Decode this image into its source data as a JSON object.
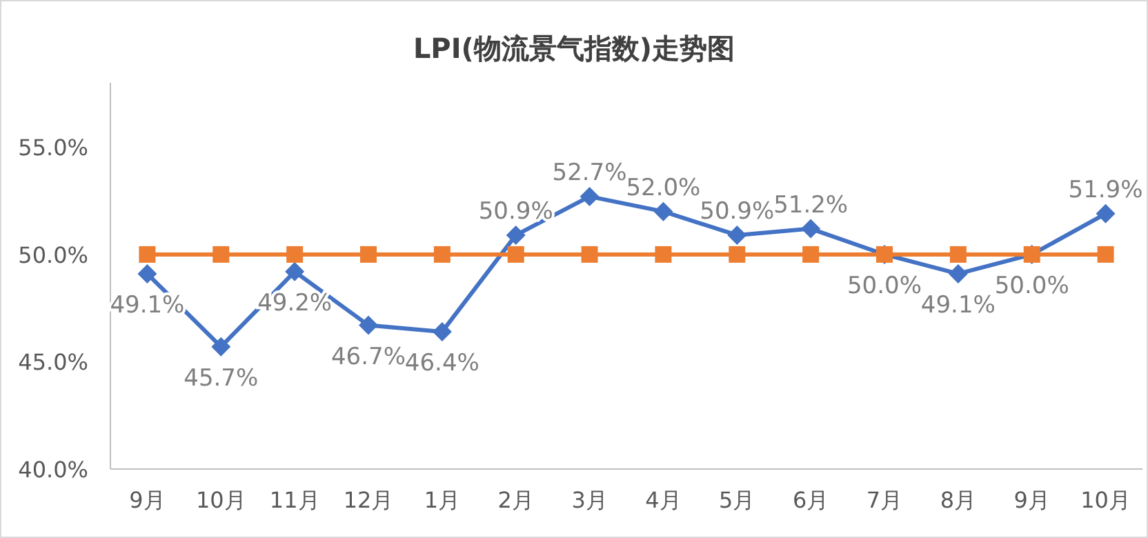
{
  "chart_data": {
    "type": "line",
    "title": "LPI(物流景气指数)走势图",
    "categories": [
      "9月",
      "10月",
      "11月",
      "12月",
      "1月",
      "2月",
      "3月",
      "4月",
      "5月",
      "6月",
      "7月",
      "8月",
      "9月",
      "10月"
    ],
    "series": [
      {
        "color": "#4472c4",
        "marker": "diamond",
        "values": [
          49.1,
          45.7,
          49.2,
          46.7,
          46.4,
          50.9,
          52.7,
          52.0,
          50.9,
          51.2,
          50.0,
          49.1,
          50.0,
          51.9
        ],
        "value_labels": [
          "49.1%",
          "45.7%",
          "49.2%",
          "46.7%",
          "46.4%",
          "50.9%",
          "52.7%",
          "52.0%",
          "50.9%",
          "51.2%",
          "50.0%",
          "49.1%",
          "50.0%",
          "51.9%"
        ]
      },
      {
        "color": "#ed7d31",
        "marker": "square",
        "values": [
          50,
          50,
          50,
          50,
          50,
          50,
          50,
          50,
          50,
          50,
          50,
          50,
          50,
          50
        ]
      }
    ],
    "ylim": [
      40,
      58
    ],
    "yticks": [
      {
        "value": 40,
        "label": "40.0%"
      },
      {
        "value": 45,
        "label": "45.0%"
      },
      {
        "value": 50,
        "label": "50.0%"
      },
      {
        "value": 55,
        "label": "55.0%"
      }
    ],
    "grid": false
  }
}
